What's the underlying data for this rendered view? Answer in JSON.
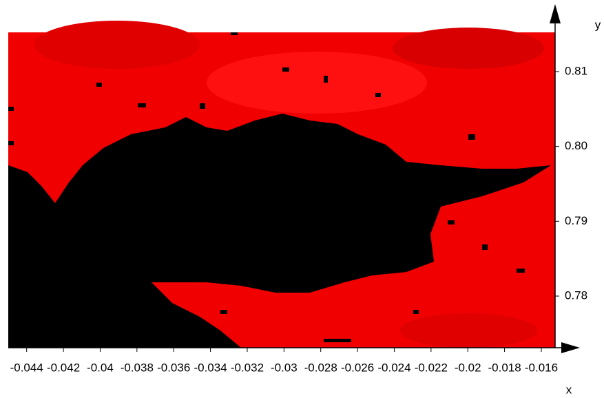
{
  "chart_data": {
    "type": "density",
    "xlabel": "x",
    "ylabel": "y",
    "xlim": [
      -0.045,
      -0.01525
    ],
    "ylim": [
      0.7731,
      0.81524
    ],
    "xticks": [
      -0.044,
      -0.042,
      -0.04,
      -0.038,
      -0.036,
      -0.034,
      -0.032,
      -0.03,
      -0.028,
      -0.026,
      -0.024,
      -0.022,
      -0.02,
      -0.018,
      -0.016
    ],
    "yticks": [
      0.78,
      0.79,
      {
        "value": 0.8,
        "label": "0.80"
      },
      0.81
    ]
  }
}
